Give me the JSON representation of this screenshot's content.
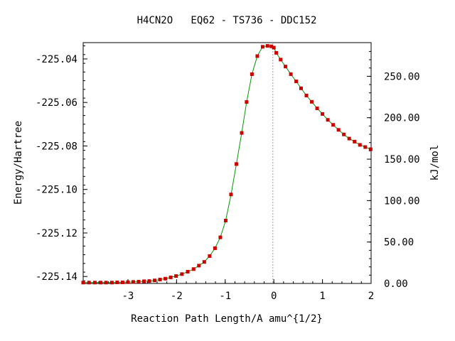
{
  "chart_data": {
    "type": "line",
    "title": "H4CN2O   EQ62 - TS736 - DDC152",
    "xlabel": "Reaction Path Length/A amu^{1/2}",
    "ylabel": "Energy/Hartree",
    "y2label": "kJ/mol",
    "xlim": [
      -3.92,
      2.0
    ],
    "ylim": [
      -225.1432,
      -225.0325
    ],
    "x_ticks": [
      -3,
      -2,
      -1,
      0,
      1,
      2
    ],
    "x_tick_labels": [
      "-3",
      "-2",
      "-1",
      "0",
      "1",
      "2"
    ],
    "y_ticks": [
      -225.04,
      -225.06,
      -225.08,
      -225.1,
      -225.12,
      -225.14
    ],
    "y_tick_labels": [
      "-225.04",
      "-225.06",
      "-225.08",
      "-225.10",
      "-225.12",
      "-225.14"
    ],
    "y2_ticks": [
      0,
      50,
      100,
      150,
      200,
      250
    ],
    "y2_tick_labels": [
      "0.00",
      "50.00",
      "100.00",
      "150.00",
      "200.00",
      "250.00"
    ],
    "y2_base_hartree": -225.1432,
    "kj_per_hartree": 2625.5,
    "ts_line_x": -0.02,
    "grid": false,
    "line_color": "#009900",
    "marker_color": "#cc0000",
    "series": [
      {
        "x": [
          -3.92,
          -3.8,
          -3.68,
          -3.56,
          -3.45,
          -3.33,
          -3.22,
          -3.11,
          -3.0,
          -2.89,
          -2.78,
          -2.67,
          -2.56,
          -2.45,
          -2.34,
          -2.23,
          -2.12,
          -2.01,
          -1.89,
          -1.77,
          -1.65,
          -1.54,
          -1.43,
          -1.32,
          -1.21,
          -1.1,
          -0.99,
          -0.88,
          -0.77,
          -0.66,
          -0.56,
          -0.45,
          -0.34,
          -0.23,
          -0.13,
          -0.05,
          0.0,
          0.05,
          0.14,
          0.24,
          0.35,
          0.46,
          0.56,
          0.67,
          0.78,
          0.89,
          1.0,
          1.11,
          1.22,
          1.33,
          1.44,
          1.55,
          1.66,
          1.77,
          1.88,
          1.99
        ],
        "y": [
          -225.1428,
          -225.1428,
          -225.1428,
          -225.1428,
          -225.1428,
          -225.1428,
          -225.1427,
          -225.1427,
          -225.1426,
          -225.1425,
          -225.1424,
          -225.1422,
          -225.1421,
          -225.1418,
          -225.1414,
          -225.141,
          -225.1404,
          -225.1398,
          -225.1389,
          -225.1378,
          -225.1366,
          -225.135,
          -225.1333,
          -225.1306,
          -225.127,
          -225.122,
          -225.1143,
          -225.1023,
          -225.0883,
          -225.074,
          -225.0598,
          -225.047,
          -225.0387,
          -225.0344,
          -225.034,
          -225.0342,
          -225.0348,
          -225.0372,
          -225.0403,
          -225.0435,
          -225.047,
          -225.0503,
          -225.0535,
          -225.0568,
          -225.0597,
          -225.0627,
          -225.0653,
          -225.068,
          -225.0703,
          -225.0726,
          -225.0747,
          -225.0766,
          -225.078,
          -225.0795,
          -225.0805,
          -225.0815
        ]
      }
    ]
  }
}
